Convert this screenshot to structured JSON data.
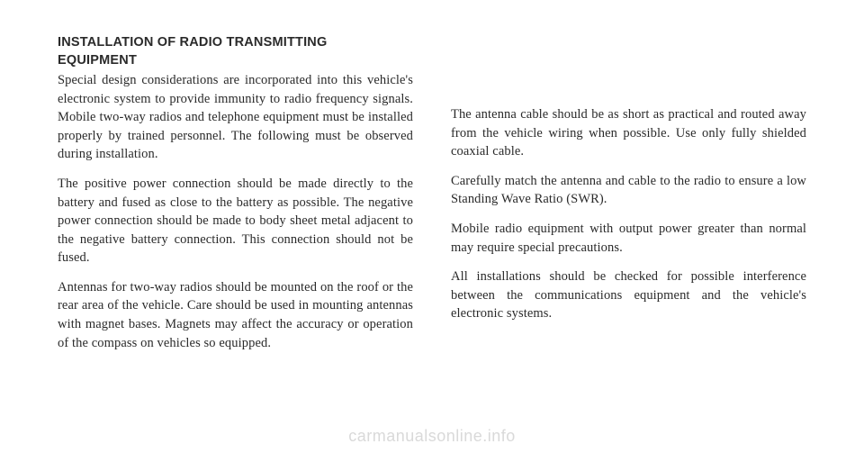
{
  "heading_line1": "INSTALLATION OF RADIO TRANSMITTING",
  "heading_line2": "EQUIPMENT",
  "left": {
    "p1": "Special design considerations are incorporated into this vehicle's electronic system to provide immunity to radio frequency signals. Mobile two-way radios and telephone equipment must be installed properly by trained person­nel. The following must be observed during installation.",
    "p2": "The positive power connection should be made directly to the battery and fused as close to the battery as possible. The negative power connection should be made to body sheet metal adjacent to the negative battery connection. This connection should not be fused.",
    "p3": "Antennas for two-way radios should be mounted on the roof or the rear area of the vehicle. Care should be used in mounting antennas with magnet bases. Magnets may affect the accuracy or operation of the compass on vehicles so equipped."
  },
  "right": {
    "p1": "The antenna cable should be as short as practical and routed away from the vehicle wiring when possible. Use only fully shielded coaxial cable.",
    "p2": "Carefully match the antenna and cable to the radio to ensure a low Standing Wave Ratio (SWR).",
    "p3": "Mobile radio equipment with output power greater than normal may require special precautions.",
    "p4": "All installations should be checked for possible interfer­ence between the communications equipment and the vehicle's electronic systems."
  },
  "watermark": "carmanualsonline.info"
}
